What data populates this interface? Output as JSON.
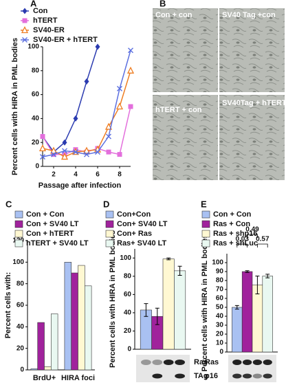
{
  "micrographs": {
    "letter": "B",
    "labels": [
      "Con + con",
      "SV40 Tag +con",
      "hTERT + con",
      "SV40Tag + hTERT"
    ]
  },
  "chart_data": [
    {
      "type": "line",
      "panel": "A",
      "ylabel": "Percent cells with HIRA in PML bodies",
      "xlabel": "Passage after infection",
      "x": [
        1,
        2,
        3,
        4,
        5,
        6,
        7,
        8,
        9
      ],
      "xlim": [
        1,
        9
      ],
      "xticks": [
        2,
        4,
        6,
        8
      ],
      "ylim": [
        0,
        100
      ],
      "yticks": [
        0,
        20,
        40,
        60,
        80,
        100
      ],
      "series": [
        {
          "name": "Con",
          "color": "#2b3bb0",
          "marker": "diamond",
          "values": [
            25,
            12,
            20,
            40,
            71,
            100,
            null,
            null,
            null
          ]
        },
        {
          "name": "hTERT",
          "color": "#e36fdc",
          "marker": "square",
          "values": [
            25,
            10,
            10,
            14,
            12,
            15,
            12,
            10,
            50
          ]
        },
        {
          "name": "SV40-ER",
          "color": "#ee7d22",
          "marker": "triangle",
          "values": [
            15,
            13,
            8,
            12,
            13,
            14,
            33,
            50,
            80
          ]
        },
        {
          "name": "SV40-ER + hTERT",
          "color": "#5b6fe0",
          "marker": "x",
          "values": [
            8,
            10,
            13,
            12,
            10,
            12,
            25,
            65,
            97
          ]
        }
      ]
    },
    {
      "type": "bar",
      "panel": "C",
      "ylabel": "Percent cells with:",
      "categories": [
        "BrdU+",
        "HIRA foci"
      ],
      "ylim": [
        0,
        120
      ],
      "yticks": [
        0,
        20,
        40,
        60,
        80,
        100,
        120
      ],
      "series": [
        {
          "name": "Con + Con",
          "color": "#a9c1f2",
          "values": [
            1,
            100
          ]
        },
        {
          "name": "Con + SV40 LT",
          "color": "#a0229c",
          "values": [
            44,
            90
          ]
        },
        {
          "name": "Con + hTERT",
          "color": "#fff8d2",
          "values": [
            3,
            97
          ]
        },
        {
          "name": "hTERT + SV40 LT",
          "color": "#e9f8f1",
          "values": [
            52,
            78
          ]
        }
      ]
    },
    {
      "type": "bar",
      "panel": "D",
      "ylabel": "Percent cells with HIRA in PML bodies",
      "categories": [
        null
      ],
      "ylim": [
        0,
        110
      ],
      "yticks": [
        0,
        20,
        40,
        60,
        80,
        100
      ],
      "blot_labels": [
        "Ras",
        "TAg"
      ],
      "series": [
        {
          "name": "Con+Con",
          "color": "#a9c1f2",
          "values": [
            43
          ],
          "errors": [
            7
          ]
        },
        {
          "name": "Con+ SV40 LT",
          "color": "#a0229c",
          "values": [
            36
          ],
          "errors": [
            9
          ]
        },
        {
          "name": "Con+ Ras",
          "color": "#fff8d2",
          "values": [
            99
          ],
          "errors": [
            1
          ]
        },
        {
          "name": "Ras+ SV40 LT",
          "color": "#e9f8f1",
          "values": [
            86
          ],
          "errors": [
            5
          ]
        }
      ]
    },
    {
      "type": "bar",
      "panel": "E",
      "ylabel": "Percent cells with HIRA in PML bodies",
      "categories": [
        null
      ],
      "ylim": [
        0,
        110
      ],
      "yticks": [
        0,
        10,
        20,
        30,
        40,
        50,
        60,
        70,
        80,
        90,
        100
      ],
      "blot_labels": [
        "Ras",
        "p16"
      ],
      "annotations": [
        "0.03",
        "0.57",
        "0.49"
      ],
      "series": [
        {
          "name": "Con + Con",
          "color": "#a9c1f2",
          "values": [
            50
          ],
          "errors": [
            2
          ]
        },
        {
          "name": "Ras + Con",
          "color": "#a0229c",
          "values": [
            90
          ],
          "errors": [
            1
          ]
        },
        {
          "name": "Ras + shp16",
          "color": "#fff8d2",
          "values": [
            75
          ],
          "errors": [
            10
          ]
        },
        {
          "name": "Ras + shLuc",
          "color": "#e9f8f1",
          "values": [
            85
          ],
          "errors": [
            2
          ]
        }
      ]
    }
  ]
}
